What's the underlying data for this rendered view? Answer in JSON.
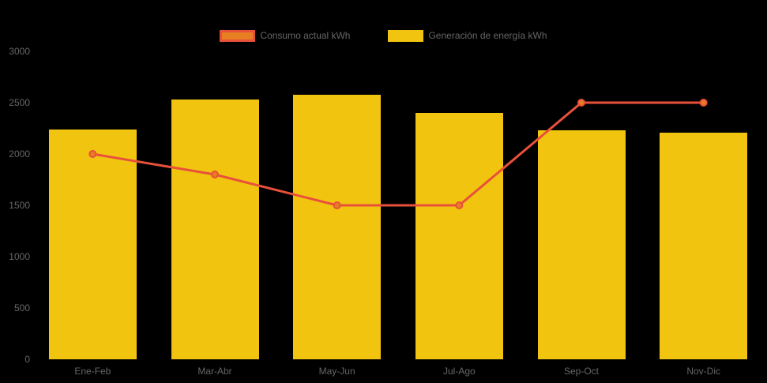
{
  "background_color": "#000000",
  "text_color": "#666666",
  "legend": {
    "items": [
      {
        "label": "Consumo actual kWh",
        "swatch_fill": "#e67e22",
        "swatch_border": "#e8503c"
      },
      {
        "label": "Generación de energía kWh",
        "swatch_fill": "#f1c40f",
        "swatch_border": "#f1c40f"
      }
    ]
  },
  "chart_data": {
    "type": "bar",
    "subtype": "bar-and-line combo",
    "categories": [
      "Ene-Feb",
      "Mar-Abr",
      "May-Jun",
      "Jul-Ago",
      "Sep-Oct",
      "Nov-Dic"
    ],
    "series": [
      {
        "name": "Consumo actual kWh",
        "type": "line",
        "line_color": "#e8503c",
        "point_fill": "#e67e22",
        "values": [
          2000,
          1800,
          1500,
          1500,
          2500,
          2500
        ]
      },
      {
        "name": "Generación de energía kWh",
        "type": "bar",
        "bar_color": "#f1c40f",
        "values": [
          2240,
          2530,
          2580,
          2400,
          2230,
          2210
        ]
      }
    ],
    "title": "",
    "xlabel": "",
    "ylabel": "",
    "ylim": [
      0,
      3000
    ],
    "ytick_step": 500,
    "yticks": [
      0,
      500,
      1000,
      1500,
      2000,
      2500,
      3000
    ],
    "grid": false,
    "legend_position": "top"
  }
}
